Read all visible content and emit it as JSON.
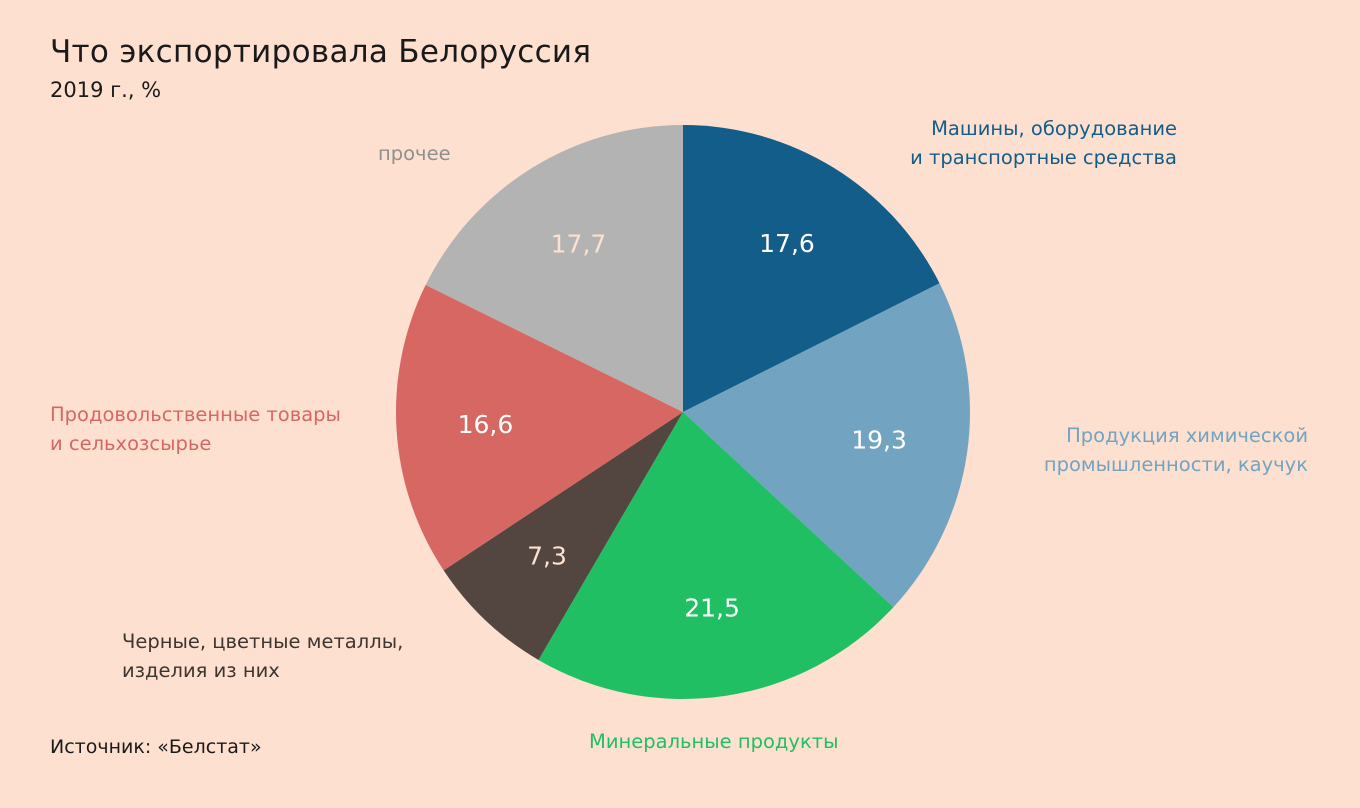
{
  "title": "Что экспортировала Белоруссия",
  "subtitle": "2019 г., %",
  "source": "Источник: «Белстат»",
  "chart_data": {
    "type": "pie",
    "title": "Что экспортировала Белоруссия",
    "subtitle": "2019 г., %",
    "unit": "%",
    "slices": [
      {
        "label_lines": [
          "Машины, оборудование",
          "и транспортные средства"
        ],
        "value": 17.6,
        "display": "17,6",
        "color": "#135d8b",
        "value_color": "#ffffff",
        "label_color": "#135d8b"
      },
      {
        "label_lines": [
          "Продукция химической",
          "промышленности, каучук"
        ],
        "value": 19.3,
        "display": "19,3",
        "color": "#72a4c2",
        "value_color": "#ffffff",
        "label_color": "#72a4c2"
      },
      {
        "label_lines": [
          "Минеральные продукты"
        ],
        "value": 21.5,
        "display": "21,5",
        "color": "#21bf64",
        "value_color": "#ffffff",
        "label_color": "#21bf64"
      },
      {
        "label_lines": [
          "Черные, цветные металлы,",
          "изделия из них"
        ],
        "value": 7.3,
        "display": "7,3",
        "color": "#534640",
        "value_color": "#fde0cf",
        "label_color": "#3d3532"
      },
      {
        "label_lines": [
          "Продовольственные товары",
          "и сельхозсырье"
        ],
        "value": 16.6,
        "display": "16,6",
        "color": "#d76763",
        "value_color": "#ffffff",
        "label_color": "#d76763"
      },
      {
        "label_lines": [
          "прочее"
        ],
        "value": 17.7,
        "display": "17,7",
        "color": "#b3b3b3",
        "value_color": "#fde0cf",
        "label_color": "#8f8f8f"
      }
    ]
  }
}
